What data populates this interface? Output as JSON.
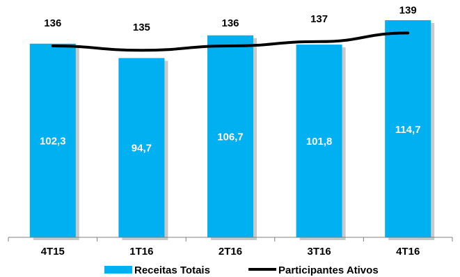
{
  "chart_data": {
    "type": "bar",
    "categories": [
      "4T15",
      "1T16",
      "2T16",
      "3T16",
      "4T16"
    ],
    "series": [
      {
        "name": "Receitas Totais",
        "type": "bar",
        "values": [
          102.3,
          94.7,
          106.7,
          101.8,
          114.7
        ],
        "value_labels": [
          "102,3",
          "94,7",
          "106,7",
          "101,8",
          "114,7"
        ],
        "color": "#00B0F0"
      },
      {
        "name": "Participantes Ativos",
        "type": "line",
        "values": [
          136,
          135,
          136,
          137,
          139
        ],
        "value_labels": [
          "136",
          "135",
          "136",
          "137",
          "139"
        ],
        "color": "#000000"
      }
    ],
    "legend_position": "bottom",
    "grid": false
  }
}
